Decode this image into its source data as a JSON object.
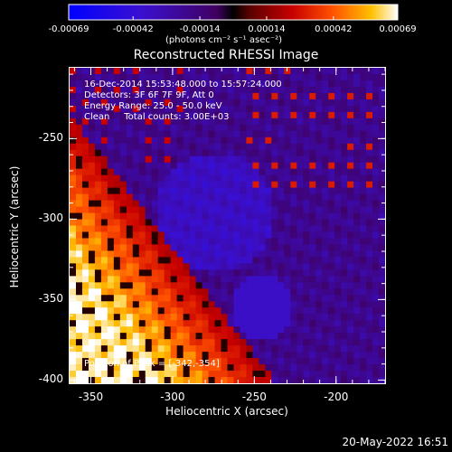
{
  "chart_data": {
    "type": "heatmap",
    "title": "Reconstructed RHESSI Image",
    "xlabel": "Heliocentric X (arcsec)",
    "ylabel": "Heliocentric Y (arcsec)",
    "xlim": [
      -363,
      -170
    ],
    "ylim": [
      -402,
      -206
    ],
    "xticks": [
      -350,
      -300,
      -250,
      -200
    ],
    "xtick_labels": [
      "-350",
      "-300",
      "-250",
      "-200"
    ],
    "yticks": [
      -250,
      -300,
      -350,
      -400
    ],
    "ytick_labels": [
      "-250",
      "-300",
      "-350",
      "-400"
    ],
    "colorbar": {
      "ticks": [
        -0.00069,
        -0.00042,
        -0.00014,
        0.00014,
        0.00042,
        0.00069
      ],
      "tick_labels": [
        "-0.00069",
        "-0.00042",
        "-0.00014",
        "0.00014",
        "0.00042",
        "0.00069"
      ],
      "units": "(photons cm⁻² s⁻¹ asec⁻²)",
      "range": [
        -0.00069,
        0.00069
      ]
    },
    "annotations": [
      "16-Dec-2014 15:53:48.000 to 15:57:24.000",
      "Detectors: 3F 6F 7F 9F, Att 0",
      "Energy Range: 25.0 - 50.0 keV",
      "Clean     Total counts: 3.00E+03"
    ],
    "peak_label": "Position of Peak = [-342,-354]",
    "peak_position": [
      -342,
      -354
    ],
    "grid": false
  },
  "footer": {
    "date": "20-May-2022 16:51"
  },
  "colors": {
    "background": "#000000",
    "axis": "#ffffff"
  }
}
